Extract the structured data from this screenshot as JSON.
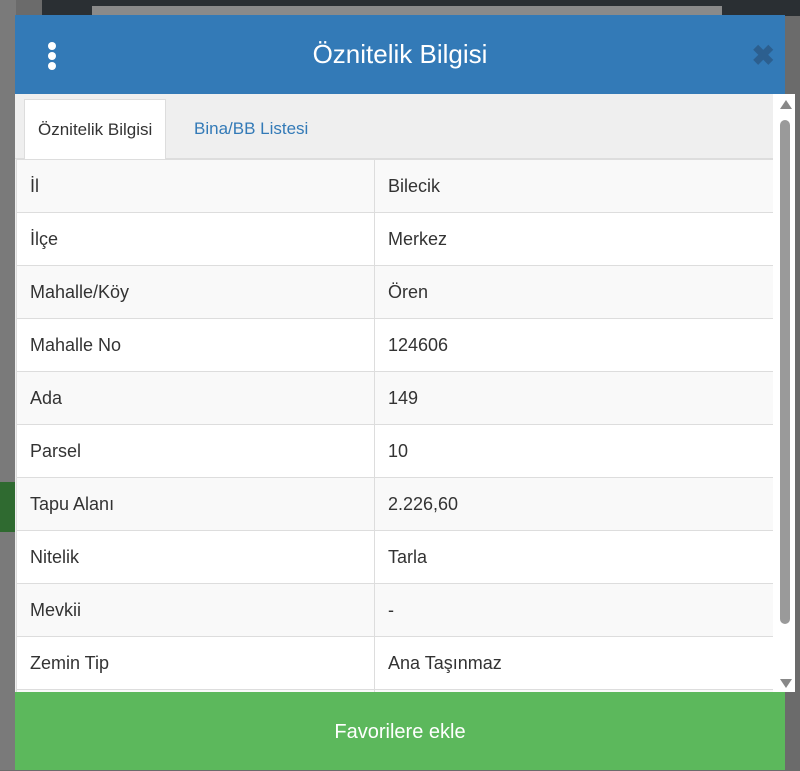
{
  "modal": {
    "title": "Öznitelik Bilgisi",
    "menu_icon": "vertical-ellipsis-icon",
    "close_icon": "close-icon",
    "tabs": [
      {
        "label": "Öznitelik Bilgisi",
        "active": true
      },
      {
        "label": "Bina/BB Listesi",
        "active": false
      }
    ],
    "rows": [
      {
        "key": "İl",
        "value": "Bilecik"
      },
      {
        "key": "İlçe",
        "value": "Merkez"
      },
      {
        "key": "Mahalle/Köy",
        "value": "Ören"
      },
      {
        "key": "Mahalle No",
        "value": "124606"
      },
      {
        "key": "Ada",
        "value": "149"
      },
      {
        "key": "Parsel",
        "value": "10"
      },
      {
        "key": "Tapu Alanı",
        "value": "2.226,60"
      },
      {
        "key": "Nitelik",
        "value": "Tarla"
      },
      {
        "key": "Mevkii",
        "value": "-"
      },
      {
        "key": "Zemin Tip",
        "value": "Ana Taşınmaz"
      },
      {
        "key": "",
        "value": ""
      }
    ],
    "favorite_button": "Favorilere ekle",
    "colors": {
      "header": "#337ab7",
      "button": "#5cb85c"
    }
  }
}
